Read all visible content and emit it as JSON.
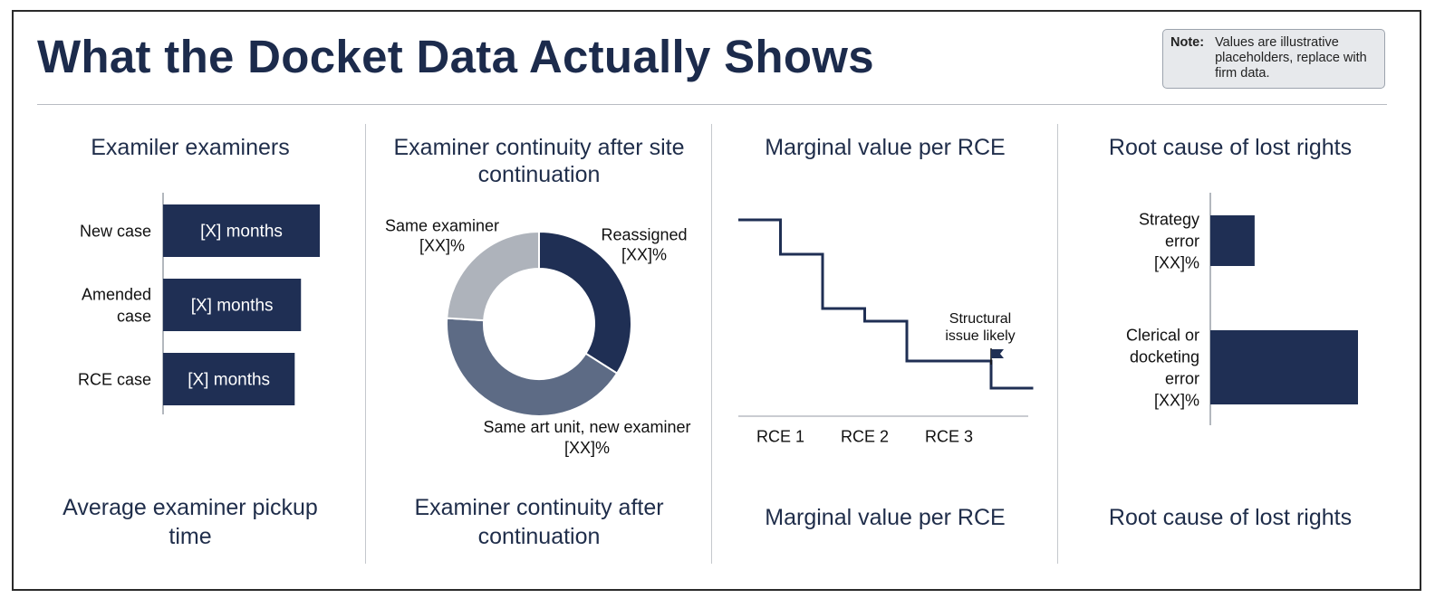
{
  "header": {
    "title": "What the Docket Data Actually Shows",
    "note_label": "Note:",
    "note_text": "Values are illustrative placeholders, replace with firm data."
  },
  "panels": [
    {
      "title": "Examiler examiners",
      "caption": "Average examiner pickup time"
    },
    {
      "title": "Examiner continuity after site continuation",
      "caption": "Examiner continuity after continuation"
    },
    {
      "title": "Marginal value per RCE",
      "caption": "Marginal value per RCE"
    },
    {
      "title": "Root cause of lost rights",
      "caption": "Root cause of lost rights"
    }
  ],
  "colors": {
    "navy": "#1f2f54",
    "slate": "#5d6b85",
    "light_gray": "#aeb3bb",
    "text": "#1f2d4a"
  },
  "chart_data": [
    {
      "type": "bar",
      "orientation": "horizontal",
      "categories": [
        "New case",
        "Amended case",
        "RCE case"
      ],
      "values": [
        1.0,
        0.88,
        0.84
      ],
      "bar_labels": [
        "[X] months",
        "[X] months",
        "[X] months"
      ],
      "title": "Examiler examiners"
    },
    {
      "type": "pie",
      "donut": true,
      "slices": [
        {
          "label": "Reassigned",
          "value_label": "[XX]%",
          "value": 34,
          "color": "#1f2f54"
        },
        {
          "label": "Same art unit, new examiner",
          "value_label": "[XX]%",
          "value": 42,
          "color": "#5d6b85"
        },
        {
          "label": "Same examiner",
          "value_label": "[XX]%",
          "value": 24,
          "color": "#aeb3bb"
        }
      ],
      "title": "Examiner continuity after site continuation"
    },
    {
      "type": "line",
      "step": true,
      "categories": [
        "RCE 1",
        "RCE 2",
        "RCE 3"
      ],
      "x": [
        0,
        0.5,
        0.5,
        1,
        1,
        1.5,
        1.5,
        2,
        2,
        2.5,
        2.5,
        3,
        3,
        3.5
      ],
      "y": [
        10,
        10,
        8.1,
        8.1,
        5.1,
        5.1,
        4.4,
        4.4,
        2.2,
        2.2,
        2.2,
        2.2,
        0.7,
        0.7
      ],
      "annotation": "Structural issue likely",
      "annotation_x": 3,
      "title": "Marginal value per RCE"
    },
    {
      "type": "bar",
      "orientation": "horizontal",
      "categories": [
        "Strategy error",
        "Clerical or docketing error"
      ],
      "value_labels": [
        "[XX]%",
        "[XX]%"
      ],
      "values": [
        30,
        100
      ],
      "title": "Root cause of lost rights"
    }
  ]
}
